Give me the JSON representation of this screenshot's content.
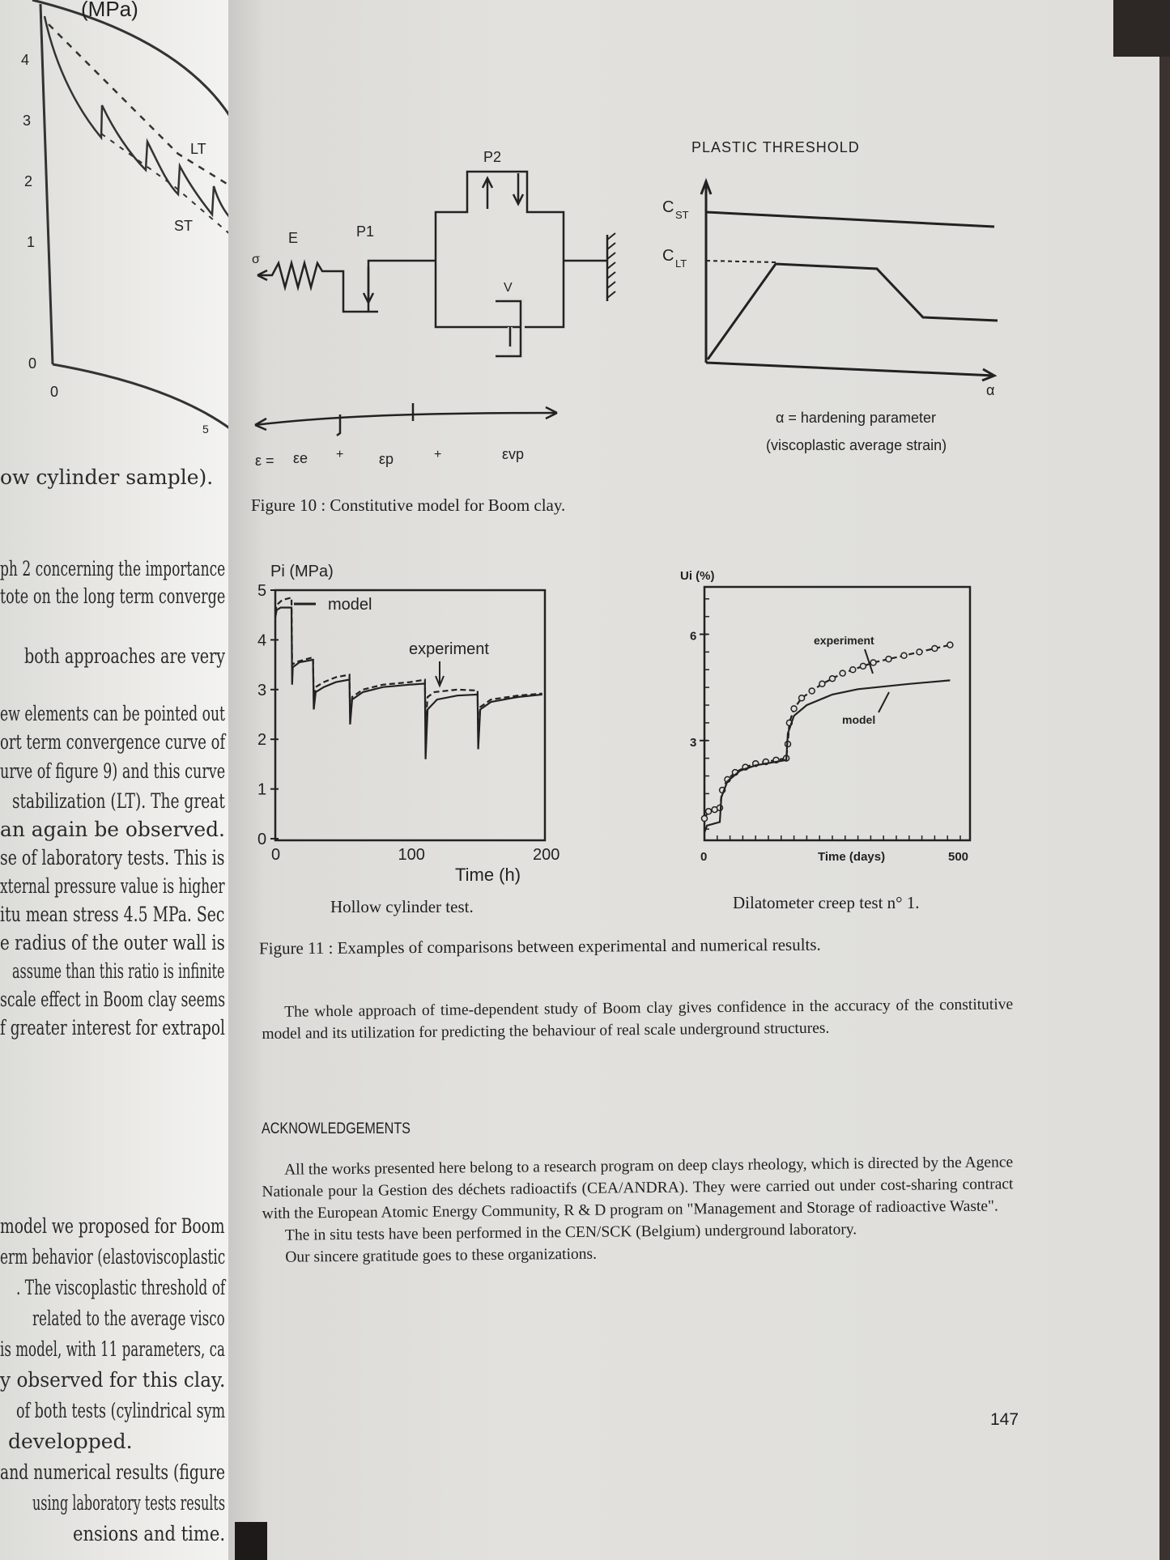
{
  "left_page": {
    "figure_ticks_y": [
      "4",
      "3",
      "2",
      "1",
      "0"
    ],
    "figure_ticks_x": [
      "0",
      "5"
    ],
    "figure_labels": {
      "axis_unit_fragment": "(MPa)",
      "lt": "LT",
      "st": "ST"
    },
    "lines": [
      "ow cylinder sample).",
      "ph 2 concerning the importance",
      "tote on the long term converge",
      "both approaches are very",
      "ew elements can be pointed out",
      "ort term convergence curve of",
      "urve of figure 9) and this curve",
      "stabilization (LT). The great",
      "an again be observed.",
      "se of laboratory tests. This is",
      "xternal pressure value is higher",
      "itu mean stress 4.5 MPa. Sec",
      "e radius of the outer wall is",
      "assume than this ratio is infinite",
      "scale effect in Boom clay seems",
      "f greater interest for extrapol"
    ],
    "lines_lower": [
      "model we proposed for Boom",
      "erm behavior (elastoviscoplastic",
      ". The viscoplastic threshold of",
      "related to the average visco",
      "is model, with 11 parameters, ca",
      "y observed for this clay.",
      "of both tests (cylindrical sym",
      "developped.",
      "and numerical results (figure",
      "using laboratory tests results",
      "ensions and time."
    ]
  },
  "figure10": {
    "model_labels": {
      "sigma": "σ",
      "E": "E",
      "P1": "P1",
      "P2": "P2",
      "V": "V"
    },
    "strain_eq": {
      "eps": "ε =",
      "eps_e": "εe",
      "plus1": "+",
      "eps_p": "εp",
      "plus2": "+",
      "eps_vp": "εvp"
    },
    "threshold": {
      "title": "PLASTIC THRESHOLD",
      "c_st": "C",
      "c_st_sub": "ST",
      "c_lt": "C",
      "c_lt_sub": "LT",
      "x_symbol": "α",
      "x_label": "α = hardening parameter",
      "x_label2": "(viscoplastic average strain)"
    },
    "caption": "Figure 10 : Constitutive model for Boom clay."
  },
  "chart_data": [
    {
      "type": "line",
      "ylabel": "Pi (MPa)",
      "xlabel": "Time (h)",
      "xlim": [
        0,
        200
      ],
      "ylim": [
        0,
        5
      ],
      "xticks": [
        "0",
        "100",
        "200"
      ],
      "yticks": [
        "0",
        "1",
        "2",
        "3",
        "4",
        "5"
      ],
      "caption": "Hollow cylinder test.",
      "series": [
        {
          "name": "model",
          "style": "solid",
          "points": [
            [
              0,
              4.45
            ],
            [
              1,
              4.6
            ],
            [
              4,
              4.65
            ],
            [
              12,
              4.65
            ],
            [
              12.5,
              3.1
            ],
            [
              13,
              3.45
            ],
            [
              18,
              3.55
            ],
            [
              28,
              3.6
            ],
            [
              28.5,
              2.6
            ],
            [
              30,
              2.95
            ],
            [
              36,
              3.05
            ],
            [
              45,
              3.15
            ],
            [
              55,
              3.2
            ],
            [
              55.5,
              2.3
            ],
            [
              57,
              2.8
            ],
            [
              65,
              2.95
            ],
            [
              80,
              3.05
            ],
            [
              100,
              3.1
            ],
            [
              111,
              3.12
            ],
            [
              111.5,
              1.6
            ],
            [
              113,
              2.6
            ],
            [
              120,
              2.8
            ],
            [
              135,
              2.88
            ],
            [
              150,
              2.9
            ],
            [
              150.5,
              1.8
            ],
            [
              152,
              2.6
            ],
            [
              160,
              2.75
            ],
            [
              180,
              2.85
            ],
            [
              198,
              2.9
            ]
          ]
        },
        {
          "name": "experiment",
          "style": "dashed",
          "points": [
            [
              0,
              4.55
            ],
            [
              1,
              4.7
            ],
            [
              5,
              4.8
            ],
            [
              12,
              4.85
            ],
            [
              12.5,
              3.5
            ],
            [
              15,
              3.55
            ],
            [
              28,
              3.65
            ],
            [
              28.5,
              2.8
            ],
            [
              30,
              3.05
            ],
            [
              36,
              3.15
            ],
            [
              45,
              3.25
            ],
            [
              55,
              3.3
            ],
            [
              55.5,
              2.5
            ],
            [
              57,
              2.85
            ],
            [
              65,
              3.0
            ],
            [
              80,
              3.1
            ],
            [
              100,
              3.15
            ],
            [
              111,
              3.2
            ],
            [
              111.5,
              2.3
            ],
            [
              113,
              2.85
            ],
            [
              118,
              2.95
            ],
            [
              135,
              3.0
            ],
            [
              150,
              2.98
            ],
            [
              150.5,
              2.0
            ],
            [
              152,
              2.65
            ],
            [
              160,
              2.8
            ],
            [
              180,
              2.88
            ],
            [
              198,
              2.92
            ]
          ]
        }
      ],
      "annotations": [
        "model",
        "experiment"
      ]
    },
    {
      "type": "scatter",
      "ylabel": "Ui (%)",
      "xlabel": "Time (days)",
      "xlim": [
        0,
        500
      ],
      "ylim": [
        0,
        7.2
      ],
      "xticks": [
        "0",
        "500"
      ],
      "yticks": [
        "3",
        "6"
      ],
      "caption": "Dilatometer creep test n° 1.",
      "series": [
        {
          "name": "experiment",
          "style": "dashed-circles",
          "points": [
            [
              0,
              0.8
            ],
            [
              8,
              1.0
            ],
            [
              20,
              1.05
            ],
            [
              30,
              1.1
            ],
            [
              35,
              1.6
            ],
            [
              45,
              1.9
            ],
            [
              60,
              2.1
            ],
            [
              80,
              2.25
            ],
            [
              100,
              2.35
            ],
            [
              120,
              2.4
            ],
            [
              140,
              2.45
            ],
            [
              160,
              2.5
            ],
            [
              163,
              2.9
            ],
            [
              166,
              3.5
            ],
            [
              175,
              3.9
            ],
            [
              190,
              4.2
            ],
            [
              210,
              4.4
            ],
            [
              230,
              4.6
            ],
            [
              250,
              4.75
            ],
            [
              270,
              4.9
            ],
            [
              290,
              5.0
            ],
            [
              310,
              5.1
            ],
            [
              330,
              5.2
            ],
            [
              360,
              5.3
            ],
            [
              390,
              5.4
            ],
            [
              420,
              5.5
            ],
            [
              450,
              5.6
            ],
            [
              480,
              5.7
            ]
          ]
        },
        {
          "name": "model",
          "style": "solid",
          "points": [
            [
              0,
              0.4
            ],
            [
              5,
              0.6
            ],
            [
              30,
              0.7
            ],
            [
              33,
              1.4
            ],
            [
              45,
              1.85
            ],
            [
              70,
              2.15
            ],
            [
              100,
              2.3
            ],
            [
              160,
              2.45
            ],
            [
              163,
              3.2
            ],
            [
              175,
              3.7
            ],
            [
              200,
              4.0
            ],
            [
              250,
              4.3
            ],
            [
              300,
              4.45
            ],
            [
              400,
              4.6
            ],
            [
              480,
              4.7
            ]
          ]
        }
      ],
      "annotations": [
        "experiment",
        "model"
      ]
    }
  ],
  "figure11_caption": "Figure 11 : Examples of comparisons between experimental and numerical results.",
  "body_paragraph": "The whole approach of time-dependent study of Boom clay gives confidence in the accuracy of the constitutive model and its utilization for predicting the behaviour of real scale underground structures.",
  "acknowledgements": {
    "heading": "ACKNOWLEDGEMENTS",
    "paragraphs": [
      "All the works presented here belong to a research program on deep clays rheology, which is directed by the Agence Nationale pour la Gestion des déchets radioactifs (CEA/ANDRA). They were carried out under cost-sharing contract with the European Atomic Energy Community, R & D program on \"Management and Storage of radioactive Waste\".",
      "The in situ tests have been performed in the CEN/SCK (Belgium) underground laboratory.",
      "Our sincere gratitude goes to these organizations."
    ]
  },
  "page_number": "147"
}
